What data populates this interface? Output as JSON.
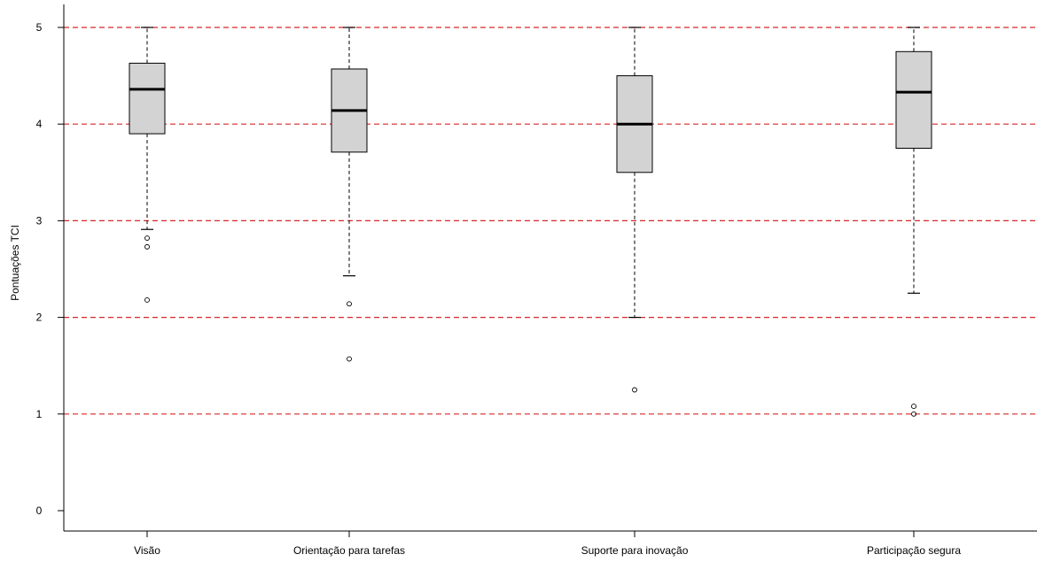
{
  "chart_data": {
    "type": "box",
    "title": "",
    "xlabel": "",
    "ylabel": "Pontuações TCI",
    "ylim": [
      0,
      5
    ],
    "yticks": [
      "0",
      "1",
      "2",
      "3",
      "4",
      "5"
    ],
    "reference_lines": [
      1,
      2,
      3,
      4,
      5
    ],
    "reference_line_color": "#d62728",
    "box_fill": "#d3d3d3",
    "categories": [
      "Visão",
      "Orientação para tarefas",
      "Suporte para inovação",
      "Participação segura"
    ],
    "boxes": [
      {
        "q1": 3.9,
        "median": 4.36,
        "q3": 4.63,
        "whisker_low": 2.91,
        "whisker_high": 5.0,
        "outliers": [
          2.82,
          2.73,
          2.18
        ]
      },
      {
        "q1": 3.71,
        "median": 4.14,
        "q3": 4.57,
        "whisker_low": 2.43,
        "whisker_high": 5.0,
        "outliers": [
          2.14,
          1.57
        ]
      },
      {
        "q1": 3.5,
        "median": 4.0,
        "q3": 4.5,
        "whisker_low": 2.0,
        "whisker_high": 5.0,
        "outliers": [
          1.25
        ]
      },
      {
        "q1": 3.75,
        "median": 4.33,
        "q3": 4.75,
        "whisker_low": 2.25,
        "whisker_high": 5.0,
        "outliers": [
          1.08,
          1.0
        ]
      }
    ]
  }
}
